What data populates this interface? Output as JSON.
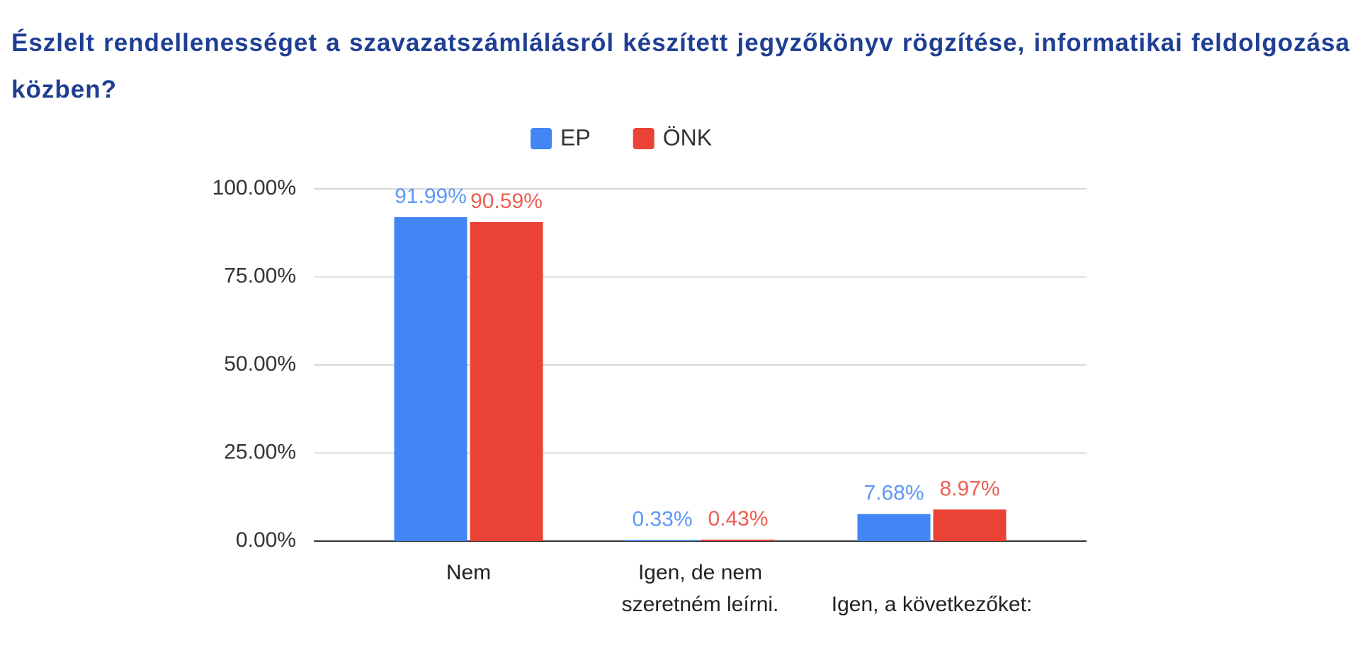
{
  "chart_data": {
    "type": "bar",
    "title": "Észlelt rendellenességet a szavazatszámlálásról készített jegyzőkönyv rögzítése, informatikai feldolgozása közben?",
    "categories": [
      "Nem",
      "Igen, de nem szeretném leírni.",
      "Igen, a következőket:"
    ],
    "series": [
      {
        "name": "EP",
        "color": "#4285f4",
        "values": [
          91.99,
          0.33,
          7.68
        ],
        "value_labels": [
          "91.99%",
          "0.33%",
          "7.68%"
        ]
      },
      {
        "name": "ÖNK",
        "color": "#ea4335",
        "values": [
          90.59,
          0.43,
          8.97
        ],
        "value_labels": [
          "90.59%",
          "0.43%",
          "8.97%"
        ]
      }
    ],
    "ylim": [
      0,
      100
    ],
    "yticks": [
      {
        "value": 0,
        "label": "0.00%"
      },
      {
        "value": 25,
        "label": "25.00%"
      },
      {
        "value": 50,
        "label": "50.00%"
      },
      {
        "value": 75,
        "label": "75.00%"
      },
      {
        "value": 100,
        "label": "100.00%"
      }
    ],
    "grid": true,
    "legend": "top"
  }
}
